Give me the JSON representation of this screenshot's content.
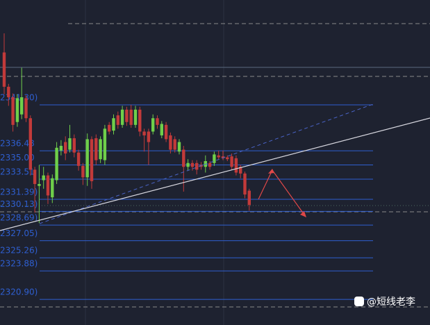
{
  "chart_data": {
    "type": "candlestick",
    "ylim": [
      2318.21,
      2352.3
    ],
    "up_color": "#6fcf4a",
    "down_color": "#c23a3a",
    "level_color": "#2f5fd0",
    "levels": [
      {
        "value": 2341.3,
        "label": "2341.30)"
      },
      {
        "value": 2336.48,
        "label": "2336.48"
      },
      {
        "value": 2335.0,
        "label": "2335.00"
      },
      {
        "value": 2333.51,
        "label": "2333.51"
      },
      {
        "value": 2331.39,
        "label": "2331.39)"
      },
      {
        "value": 2330.13,
        "label": "2330.13)"
      },
      {
        "value": 2328.69,
        "label": "2328.69)"
      },
      {
        "value": 2327.05,
        "label": "2327.05)"
      },
      {
        "value": 2325.26,
        "label": "2325.26)"
      },
      {
        "value": 2323.88,
        "label": "2323.88)"
      },
      {
        "value": 2320.9,
        "label": "2320.90)"
      }
    ],
    "open": [
      2346.8,
      2343.2,
      2342.1,
      2339.5,
      2340.3,
      2342.0,
      2339.9,
      2334.5,
      2332.8,
      2333.4,
      2333.9,
      2331.6,
      2333.4,
      2336.5,
      2337.4,
      2336.6,
      2337.8,
      2336.3,
      2334.9,
      2333.7,
      2337.7,
      2337.8,
      2335.6,
      2335.5,
      2339.2,
      2338.6,
      2340.2,
      2339.2,
      2340.8,
      2340.8,
      2339.2,
      2340.8,
      2338.5,
      2338.5,
      2338.5,
      2339.9,
      2338.1,
      2339.2,
      2338.1,
      2337.7,
      2336.4,
      2336.6,
      2334.8,
      2335.2,
      2335.2,
      2335.0,
      2334.8,
      2335.2,
      2335.2,
      2336.0,
      2335.9,
      2335.8,
      2335.9,
      2335.7,
      2334.8,
      2334.1,
      2332.3
    ],
    "high": [
      2348.8,
      2343.5,
      2342.5,
      2342.4,
      2345.2,
      2342.3,
      2340.2,
      2334.8,
      2335.0,
      2334.8,
      2334.2,
      2334.0,
      2337.4,
      2337.6,
      2338.0,
      2339.2,
      2338.2,
      2336.6,
      2335.2,
      2338.3,
      2338.0,
      2338.2,
      2338.0,
      2339.2,
      2339.5,
      2340.3,
      2340.6,
      2341.2,
      2341.1,
      2341.3,
      2341.2,
      2341.1,
      2338.8,
      2338.8,
      2340.3,
      2340.2,
      2339.6,
      2339.5,
      2338.4,
      2338.0,
      2337.7,
      2337.0,
      2335.6,
      2335.5,
      2335.5,
      2335.3,
      2336.0,
      2335.4,
      2336.4,
      2336.5,
      2336.5,
      2336.0,
      2336.2,
      2336.0,
      2335.0,
      2334.3,
      2332.5
    ],
    "low": [
      2342.4,
      2341.2,
      2338.5,
      2339.0,
      2339.8,
      2339.5,
      2333.9,
      2330.0,
      2328.9,
      2332.5,
      2330.9,
      2331.0,
      2333.0,
      2336.0,
      2335.5,
      2336.3,
      2335.8,
      2334.4,
      2332.9,
      2332.8,
      2332.5,
      2335.0,
      2335.2,
      2335.0,
      2338.2,
      2338.2,
      2338.8,
      2338.9,
      2339.1,
      2338.9,
      2338.9,
      2338.0,
      2336.4,
      2335.0,
      2338.2,
      2338.8,
      2337.8,
      2337.4,
      2336.2,
      2336.3,
      2336.1,
      2332.2,
      2334.4,
      2334.4,
      2334.0,
      2334.5,
      2334.2,
      2334.5,
      2334.9,
      2335.6,
      2335.5,
      2335.4,
      2334.5,
      2333.9,
      2333.6,
      2331.5,
      2330.2
    ],
    "close": [
      2343.2,
      2342.1,
      2339.2,
      2342.0,
      2342.1,
      2339.9,
      2334.5,
      2333.0,
      2333.0,
      2333.9,
      2331.8,
      2333.6,
      2336.8,
      2337.0,
      2336.2,
      2337.8,
      2336.3,
      2334.9,
      2333.7,
      2337.7,
      2333.3,
      2335.5,
      2337.7,
      2338.8,
      2338.5,
      2339.9,
      2339.2,
      2340.8,
      2339.5,
      2339.2,
      2340.8,
      2338.5,
      2338.1,
      2337.4,
      2339.9,
      2339.2,
      2339.3,
      2337.7,
      2336.6,
      2336.6,
      2337.4,
      2334.8,
      2335.2,
      2334.8,
      2334.5,
      2334.8,
      2335.4,
      2334.8,
      2336.1,
      2335.8,
      2335.7,
      2335.6,
      2334.8,
      2334.2,
      2334.1,
      2331.9,
      2330.8
    ]
  },
  "watermark": "@短线老李"
}
